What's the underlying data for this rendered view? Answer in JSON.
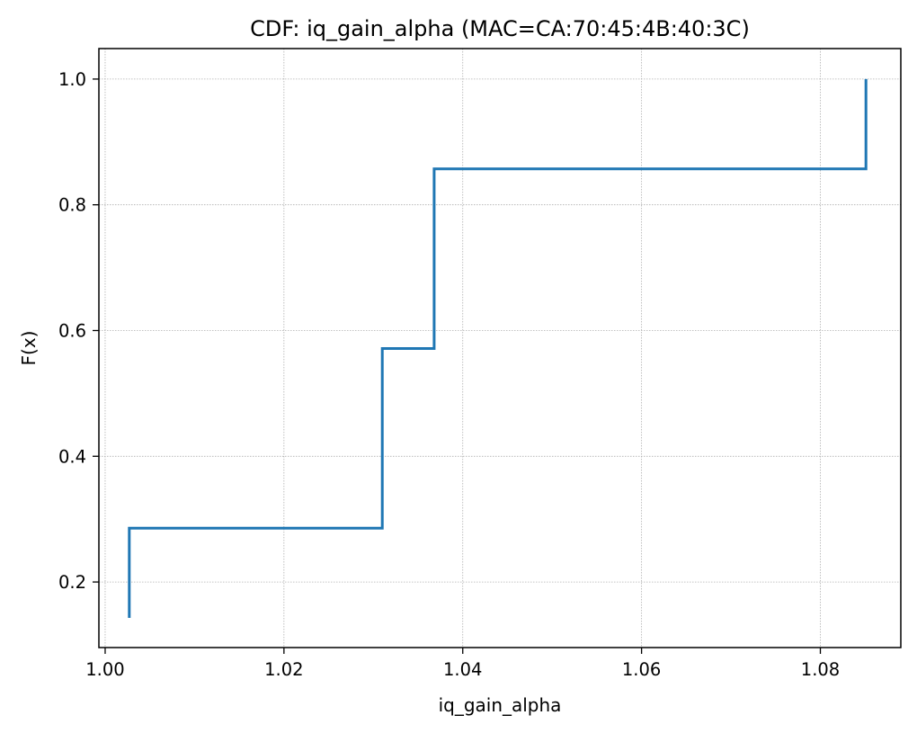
{
  "chart_data": {
    "type": "line",
    "title": "CDF: iq_gain_alpha (MAC=CA:70:45:4B:40:3C)",
    "xlabel": "iq_gain_alpha",
    "ylabel": "F(x)",
    "xlim": [
      0.9993,
      1.089
    ],
    "ylim": [
      0.0957,
      1.0485
    ],
    "x_ticks": [
      1.0,
      1.02,
      1.04,
      1.06,
      1.08
    ],
    "x_tick_labels": [
      "1.00",
      "1.02",
      "1.04",
      "1.06",
      "1.08"
    ],
    "y_ticks": [
      0.2,
      0.4,
      0.6,
      0.8,
      1.0
    ],
    "y_tick_labels": [
      "0.2",
      "0.4",
      "0.6",
      "0.8",
      "1.0"
    ],
    "grid": true,
    "step": "post",
    "series": [
      {
        "color": "#1f77b4",
        "x": [
          1.0027,
          1.0027,
          1.031,
          1.0368,
          1.0851
        ],
        "y": [
          0.1429,
          0.2857,
          0.5714,
          0.8571,
          1.0
        ]
      }
    ]
  }
}
